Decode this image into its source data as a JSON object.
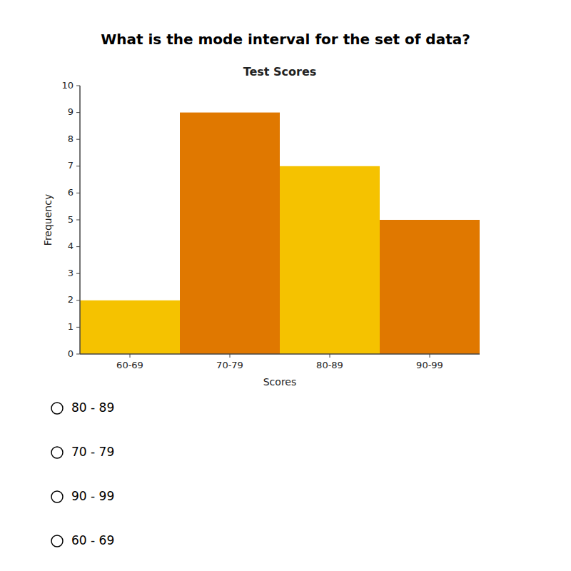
{
  "chart_data": {
    "type": "bar",
    "title": "Test Scores",
    "question": "What is the mode interval for the set of data?",
    "xlabel": "Scores",
    "ylabel": "Frequency",
    "categories": [
      "60-69",
      "70-79",
      "80-89",
      "90-99"
    ],
    "values": [
      2,
      9,
      7,
      5
    ],
    "colors": [
      "#F5C200",
      "#E07800",
      "#F5C200",
      "#E07800"
    ],
    "ylim": [
      0,
      10
    ],
    "yticks": [
      0,
      1,
      2,
      3,
      4,
      5,
      6,
      7,
      8,
      9,
      10
    ],
    "grid": false,
    "answer_options": [
      "80 - 89",
      "70 - 79",
      "90 - 99",
      "60 - 69"
    ]
  }
}
